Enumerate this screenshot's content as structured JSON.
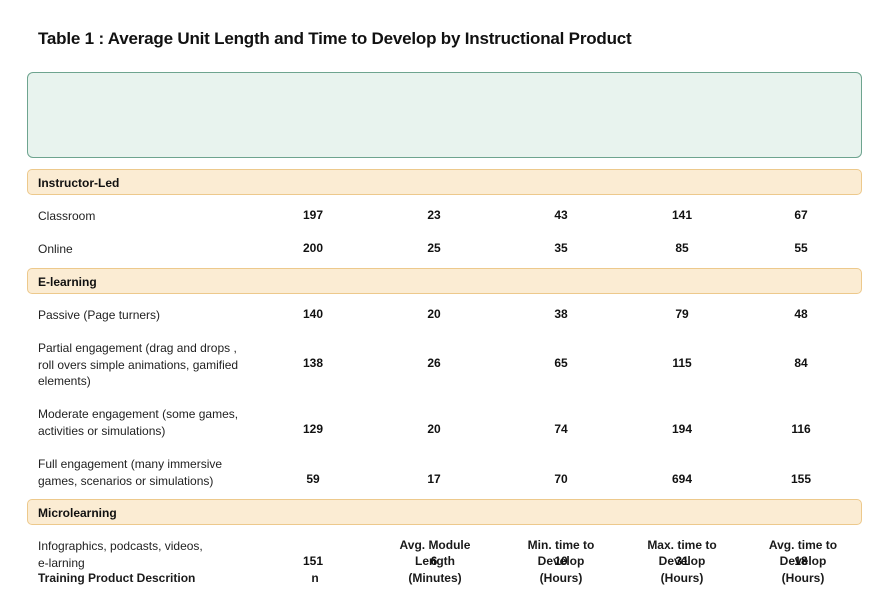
{
  "title": "Table 1 : Average Unit Length and Time to Develop by Instructional Product",
  "columns": [
    "Training Product Descrition",
    "n",
    "Avg. Module\nLength\n(Minutes)",
    "Min. time to\nDevelop\n(Hours)",
    "Max. time to\nDevelop\n(Hours)",
    "Avg. time to\nDevelop\n(Hours)"
  ],
  "sections": [
    {
      "label": "Instructor-Led",
      "rows": [
        {
          "desc": "Classroom",
          "values": [
            "197",
            "23",
            "43",
            "141",
            "67"
          ]
        },
        {
          "desc": "Online",
          "values": [
            "200",
            "25",
            "35",
            "85",
            "55"
          ]
        }
      ]
    },
    {
      "label": "E-learning",
      "rows": [
        {
          "desc": "Passive (Page turners)",
          "values": [
            "140",
            "20",
            "38",
            "79",
            "48"
          ]
        },
        {
          "desc": "Partial engagement (drag and drops ,\nroll overs simple animations, gamified\nelements)",
          "values": [
            "138",
            "26",
            "65",
            "115",
            "84"
          ]
        },
        {
          "desc": "Moderate engagement (some games,\nactivities or simulations)",
          "values": [
            "129",
            "20",
            "74",
            "194",
            "116"
          ]
        },
        {
          "desc": "Full engagement (many immersive\ngames, scenarios or simulations)",
          "values": [
            "59",
            "17",
            "70",
            "694",
            "155"
          ]
        }
      ]
    },
    {
      "label": "Microlearning",
      "rows": [
        {
          "desc": "Infographics, podcasts, videos,\ne-larning",
          "values": [
            "151",
            "6",
            "10",
            "31",
            "18"
          ]
        }
      ]
    }
  ]
}
